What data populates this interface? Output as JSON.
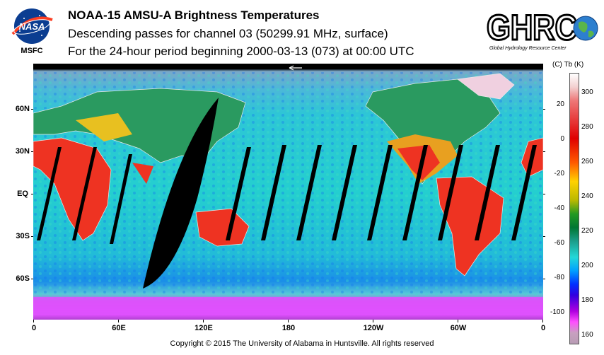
{
  "header": {
    "title": "NOAA-15 AMSU-A Brightness Temperatures",
    "subtitle1": "Descending passes for channel 03 (50299.91 MHz, surface)",
    "subtitle2": "For the 24-hour period beginning 2000-03-13 (073) at 00:00 UTC"
  },
  "logos": {
    "nasa_text": "NASA",
    "nasa_center": "MSFC",
    "ghrc_text": "GHRC",
    "ghrc_caption": "Global Hydrology Resource Center"
  },
  "map": {
    "lat_labels": [
      "60N",
      "30N",
      "EQ",
      "30S",
      "60S"
    ],
    "lon_labels": [
      "0",
      "60E",
      "120E",
      "180",
      "120W",
      "60W",
      "0"
    ],
    "colors": {
      "ocean": "#23c8c8",
      "land_warm": "#ee3322",
      "gap": "#000000",
      "polar": "#d040d8",
      "coast": "#e8e8e8"
    }
  },
  "colorbar": {
    "units_label": "(C)  Tb  (K)",
    "celsius_ticks": [
      "20",
      "0",
      "-20",
      "-40",
      "-60",
      "-80",
      "-100"
    ],
    "kelvin_ticks": [
      "300",
      "280",
      "260",
      "240",
      "220",
      "200",
      "180",
      "160"
    ]
  },
  "footer": {
    "copyright": "Copyright © 2015 The University of Alabama in Huntsville.  All rights reserved"
  }
}
